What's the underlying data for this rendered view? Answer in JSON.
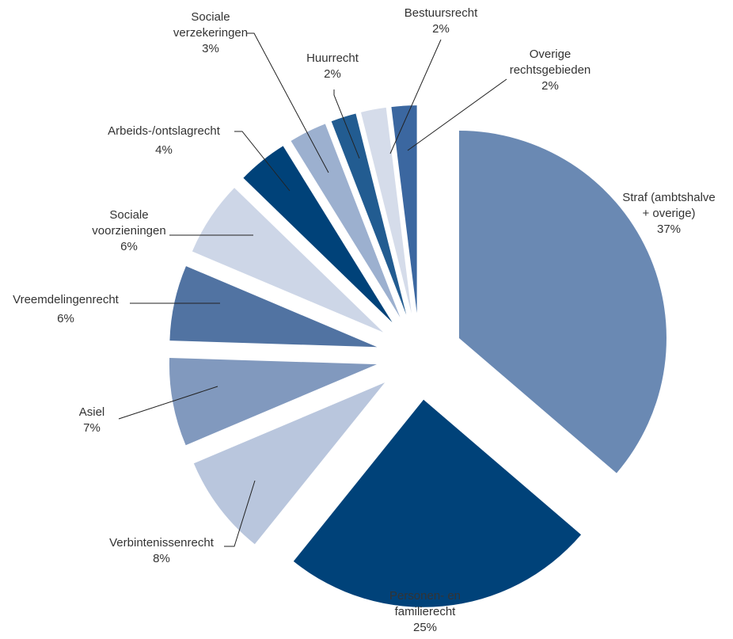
{
  "chart_data": {
    "type": "pie",
    "title": "",
    "slices": [
      {
        "lines": [
          "Straf (ambtshalve",
          "+ overige)"
        ],
        "pct_label": "37%",
        "value": 37,
        "color": "#6a89b3"
      },
      {
        "lines": [
          "Personen- en",
          "familierecht"
        ],
        "pct_label": "25%",
        "value": 25,
        "color": "#004279"
      },
      {
        "lines": [
          "Verbintenissenrecht"
        ],
        "pct_label": "8%",
        "value": 8,
        "color": "#b9c6dd"
      },
      {
        "lines": [
          "Asiel"
        ],
        "pct_label": "7%",
        "value": 7,
        "color": "#8199be"
      },
      {
        "lines": [
          "Vreemdelingenrecht"
        ],
        "pct_label": "6%",
        "value": 6,
        "color": "#5173a2"
      },
      {
        "lines": [
          "Sociale",
          "voorzieningen"
        ],
        "pct_label": "6%",
        "value": 6,
        "color": "#cdd6e7"
      },
      {
        "lines": [
          "Arbeids-/ontslagrecht"
        ],
        "pct_label": "4%",
        "value": 4,
        "color": "#004279"
      },
      {
        "lines": [
          "Sociale",
          "verzekeringen"
        ],
        "pct_label": "3%",
        "value": 3,
        "color": "#9cb0cf"
      },
      {
        "lines": [
          "Huurrecht"
        ],
        "pct_label": "2%",
        "value": 2,
        "color": "#225c91"
      },
      {
        "lines": [
          "Bestuursrecht"
        ],
        "pct_label": "2%",
        "value": 2,
        "color": "#d5dcea"
      },
      {
        "lines": [
          "Overige",
          "rechtsgebieden"
        ],
        "pct_label": "2%",
        "value": 2,
        "color": "#3b67a0"
      }
    ]
  }
}
